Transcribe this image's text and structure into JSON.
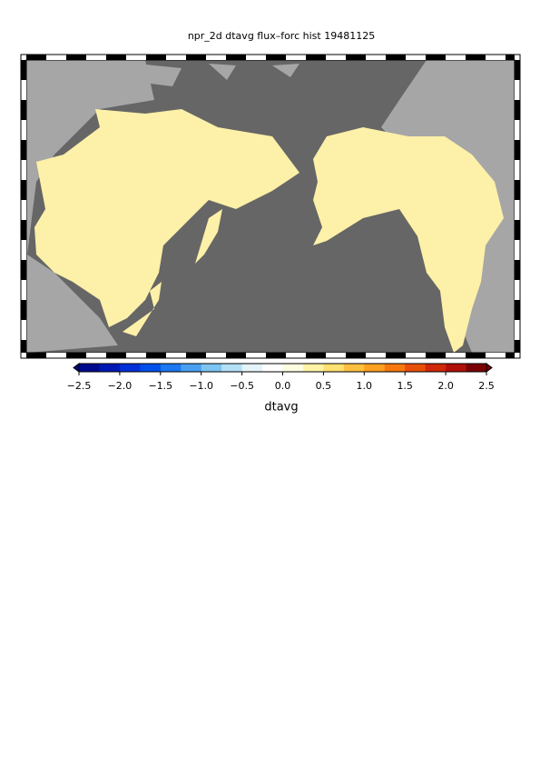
{
  "title": "npr_2d dtavg flux–forc hist 19481125",
  "colorbar": {
    "label": "dtavg",
    "lim": [
      -2.5,
      2.5
    ],
    "ticks": [
      {
        "value": -2.5,
        "label": "−2.5"
      },
      {
        "value": -2.0,
        "label": "−2.0"
      },
      {
        "value": -1.5,
        "label": "−1.5"
      },
      {
        "value": -1.0,
        "label": "−1.0"
      },
      {
        "value": -0.5,
        "label": "−0.5"
      },
      {
        "value": 0,
        "label": "0.0"
      },
      {
        "value": 0.5,
        "label": "0.5"
      },
      {
        "value": 1.0,
        "label": "1.0"
      },
      {
        "value": 1.5,
        "label": "1.5"
      },
      {
        "value": 2.0,
        "label": "2.0"
      },
      {
        "value": 2.5,
        "label": "2.5"
      }
    ],
    "colors": [
      "#000a8c",
      "#0019b4",
      "#0030d8",
      "#0050ec",
      "#1a78f0",
      "#4aa0f0",
      "#7cc4f2",
      "#b4e0f6",
      "#e4f4fa",
      "#ffffff",
      "#fffde0",
      "#fff3a6",
      "#ffe070",
      "#ffc040",
      "#ffa020",
      "#f87810",
      "#e85008",
      "#d02808",
      "#b01008",
      "#7a0004"
    ]
  }
}
